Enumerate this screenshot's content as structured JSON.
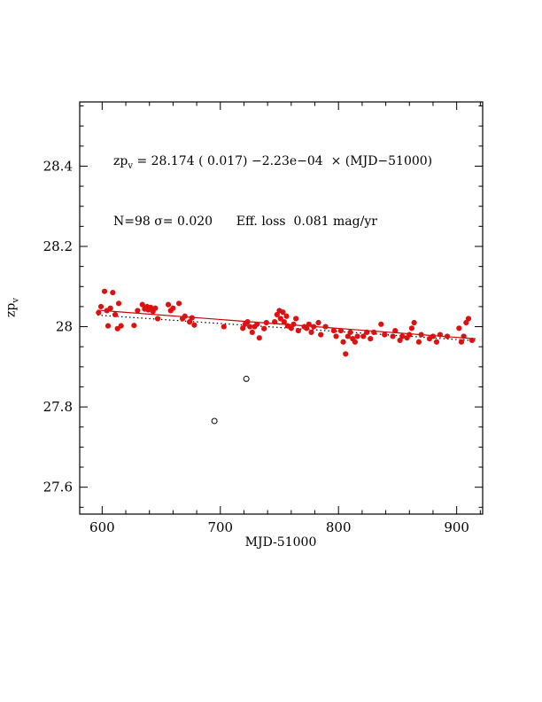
{
  "chart_data": {
    "type": "scatter",
    "title": "",
    "xlabel": "MJD-51000",
    "ylabel_main": "zp",
    "ylabel_sub": "v",
    "xlim": [
      581,
      922
    ],
    "ylim": [
      27.533,
      28.56
    ],
    "x_major_ticks": [
      600,
      700,
      800,
      900
    ],
    "x_tick_labels": [
      "600",
      "700",
      "800",
      "900"
    ],
    "x_minor_step": 20,
    "y_major_ticks": [
      27.6,
      27.8,
      28.0,
      28.2,
      28.4
    ],
    "y_tick_labels": [
      "27.6",
      "27.8",
      "28",
      "28.2",
      "28.4"
    ],
    "y_minor_step": 0.05,
    "annotation_line1": {
      "prefix": "zp",
      "sub": "v",
      "rest": " = 28.174 ( 0.017) −2.23e−04  × (MJD−51000)"
    },
    "annotation_line2": "N=98 σ= 0.020      Eff. loss  0.081 mag/yr",
    "fit_solid": {
      "intercept": 28.174,
      "slope": -0.000223,
      "x_start": 596,
      "x_end": 916,
      "color": "#cc0000"
    },
    "fit_dotted": {
      "intercept": 28.148,
      "slope": -0.0002,
      "x_start": 596,
      "x_end": 916,
      "color": "#000000"
    },
    "points_color": "#dd1111",
    "points": [
      [
        597,
        28.035
      ],
      [
        599,
        28.05
      ],
      [
        602,
        28.088
      ],
      [
        604,
        28.04
      ],
      [
        605,
        28.002
      ],
      [
        607,
        28.046
      ],
      [
        609,
        28.085
      ],
      [
        611,
        28.03
      ],
      [
        613,
        27.995
      ],
      [
        614,
        28.058
      ],
      [
        616,
        28.002
      ],
      [
        627,
        28.003
      ],
      [
        630,
        28.04
      ],
      [
        634,
        28.055
      ],
      [
        636,
        28.044
      ],
      [
        638,
        28.05
      ],
      [
        639,
        28.042
      ],
      [
        641,
        28.048
      ],
      [
        643,
        28.038
      ],
      [
        645,
        28.046
      ],
      [
        647,
        28.02
      ],
      [
        656,
        28.055
      ],
      [
        658,
        28.04
      ],
      [
        660,
        28.046
      ],
      [
        665,
        28.058
      ],
      [
        668,
        28.02
      ],
      [
        670,
        28.026
      ],
      [
        674,
        28.012
      ],
      [
        676,
        28.022
      ],
      [
        678,
        28.004
      ],
      [
        703,
        28.0
      ],
      [
        719,
        27.996
      ],
      [
        721,
        28.006
      ],
      [
        723,
        28.012
      ],
      [
        725,
        28.0
      ],
      [
        727,
        27.986
      ],
      [
        729,
        28.0
      ],
      [
        731,
        28.006
      ],
      [
        733,
        27.972
      ],
      [
        737,
        27.995
      ],
      [
        739,
        28.01
      ],
      [
        746,
        28.012
      ],
      [
        748,
        28.03
      ],
      [
        750,
        28.04
      ],
      [
        751,
        28.02
      ],
      [
        753,
        28.036
      ],
      [
        754,
        28.012
      ],
      [
        756,
        28.026
      ],
      [
        757,
        28.002
      ],
      [
        760,
        27.996
      ],
      [
        762,
        28.006
      ],
      [
        764,
        28.02
      ],
      [
        766,
        27.99
      ],
      [
        771,
        28.0
      ],
      [
        773,
        27.996
      ],
      [
        775,
        28.006
      ],
      [
        777,
        27.986
      ],
      [
        779,
        28.0
      ],
      [
        783,
        28.01
      ],
      [
        785,
        27.98
      ],
      [
        789,
        28.0
      ],
      [
        796,
        27.99
      ],
      [
        798,
        27.976
      ],
      [
        802,
        27.99
      ],
      [
        804,
        27.962
      ],
      [
        806,
        27.932
      ],
      [
        808,
        27.976
      ],
      [
        810,
        27.986
      ],
      [
        812,
        27.97
      ],
      [
        814,
        27.962
      ],
      [
        816,
        27.976
      ],
      [
        821,
        27.976
      ],
      [
        824,
        27.986
      ],
      [
        827,
        27.97
      ],
      [
        830,
        27.986
      ],
      [
        836,
        28.006
      ],
      [
        839,
        27.98
      ],
      [
        846,
        27.976
      ],
      [
        848,
        27.99
      ],
      [
        852,
        27.966
      ],
      [
        854,
        27.976
      ],
      [
        858,
        27.972
      ],
      [
        860,
        27.98
      ],
      [
        862,
        27.996
      ],
      [
        864,
        28.01
      ],
      [
        868,
        27.962
      ],
      [
        870,
        27.98
      ],
      [
        877,
        27.97
      ],
      [
        880,
        27.976
      ],
      [
        883,
        27.962
      ],
      [
        886,
        27.98
      ],
      [
        892,
        27.976
      ],
      [
        902,
        27.996
      ],
      [
        904,
        27.962
      ],
      [
        906,
        27.976
      ],
      [
        908,
        28.01
      ],
      [
        910,
        28.02
      ],
      [
        913,
        27.966
      ]
    ],
    "outliers": [
      [
        695,
        27.765
      ],
      [
        722,
        27.87
      ]
    ]
  }
}
